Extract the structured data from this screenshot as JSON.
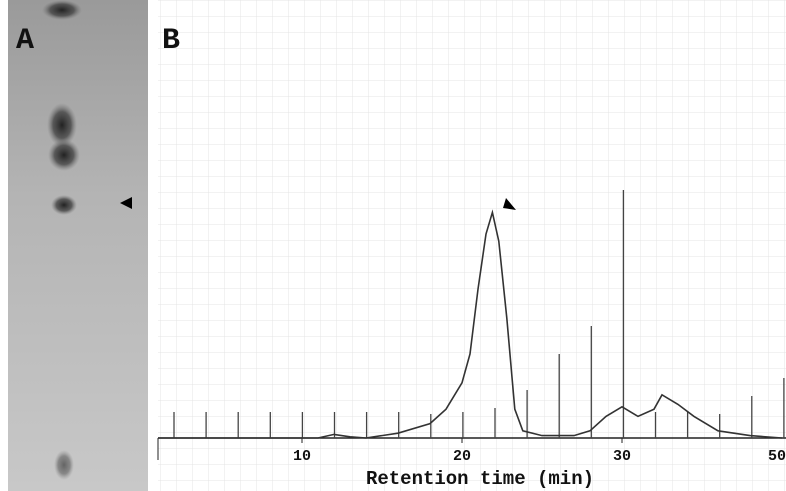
{
  "chart_data": {
    "type": "line",
    "panel_labels": [
      "A",
      "B"
    ],
    "x_label": "Retention time (min)",
    "xlim": [
      1,
      40.25
    ],
    "ylim": [
      0,
      100
    ],
    "xticks": [
      10,
      20,
      30
    ],
    "edge_tick_label": "50",
    "series": [
      {
        "color": "#333333",
        "x": [
          1,
          11,
          12,
          13,
          14,
          16,
          18,
          19,
          20,
          20.5,
          21,
          21.5,
          21.9,
          22.3,
          22.8,
          23.3,
          23.8,
          25,
          27,
          28,
          29,
          30,
          31,
          32,
          32.5,
          33.5,
          34.5,
          36,
          38,
          40
        ],
        "values": [
          0,
          0,
          1.5,
          0.5,
          0,
          2,
          6,
          12,
          23,
          35,
          62,
          85,
          94,
          82,
          50,
          12,
          3,
          1,
          1,
          3,
          9,
          13,
          9,
          12,
          18,
          14,
          9,
          3,
          1,
          0
        ]
      }
    ]
  }
}
